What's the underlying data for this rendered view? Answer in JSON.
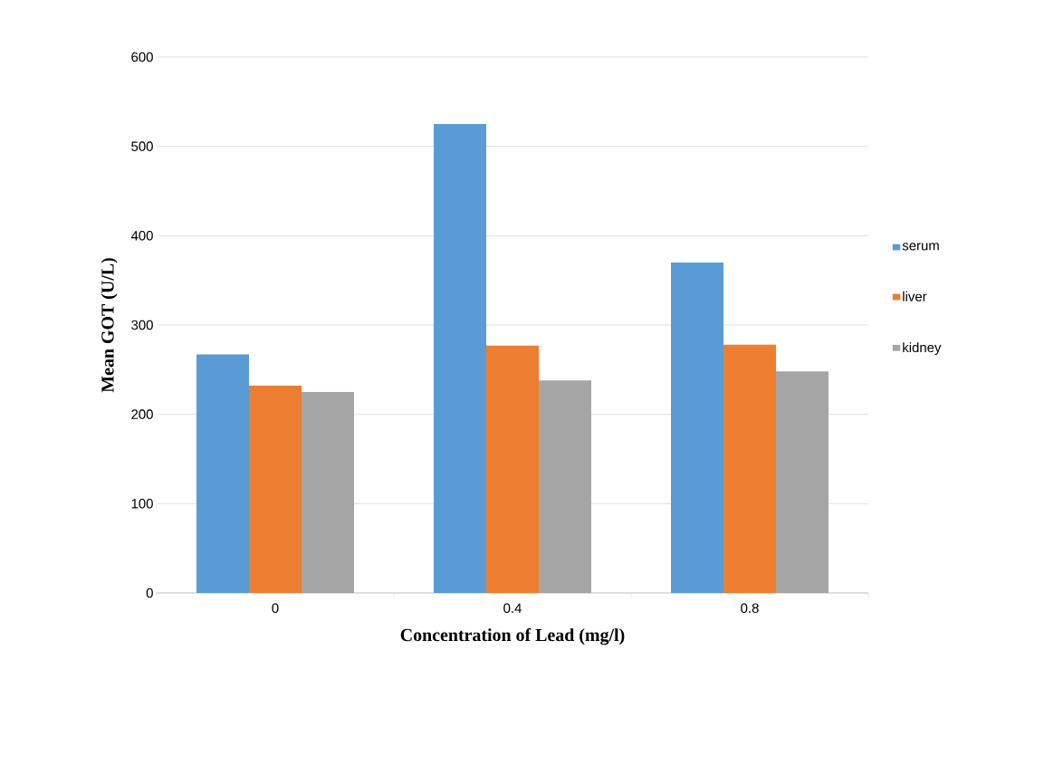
{
  "chart_data": {
    "type": "bar",
    "xlabel": "Concentration of  Lead (mg/l)",
    "ylabel": "Mean  GOT (U/L)",
    "categories": [
      "0",
      "0.4",
      "0.8"
    ],
    "series": [
      {
        "name": "serum",
        "color": "#5b9bd5",
        "values": [
          267,
          525,
          370
        ]
      },
      {
        "name": "liver",
        "color": "#ed7d31",
        "values": [
          232,
          277,
          278
        ]
      },
      {
        "name": "kidney",
        "color": "#a5a5a5",
        "values": [
          225,
          238,
          248
        ]
      }
    ],
    "ylim": [
      0,
      600
    ],
    "yticks": [
      0,
      100,
      200,
      300,
      400,
      500,
      600
    ],
    "grid": "y",
    "legend": "right"
  }
}
